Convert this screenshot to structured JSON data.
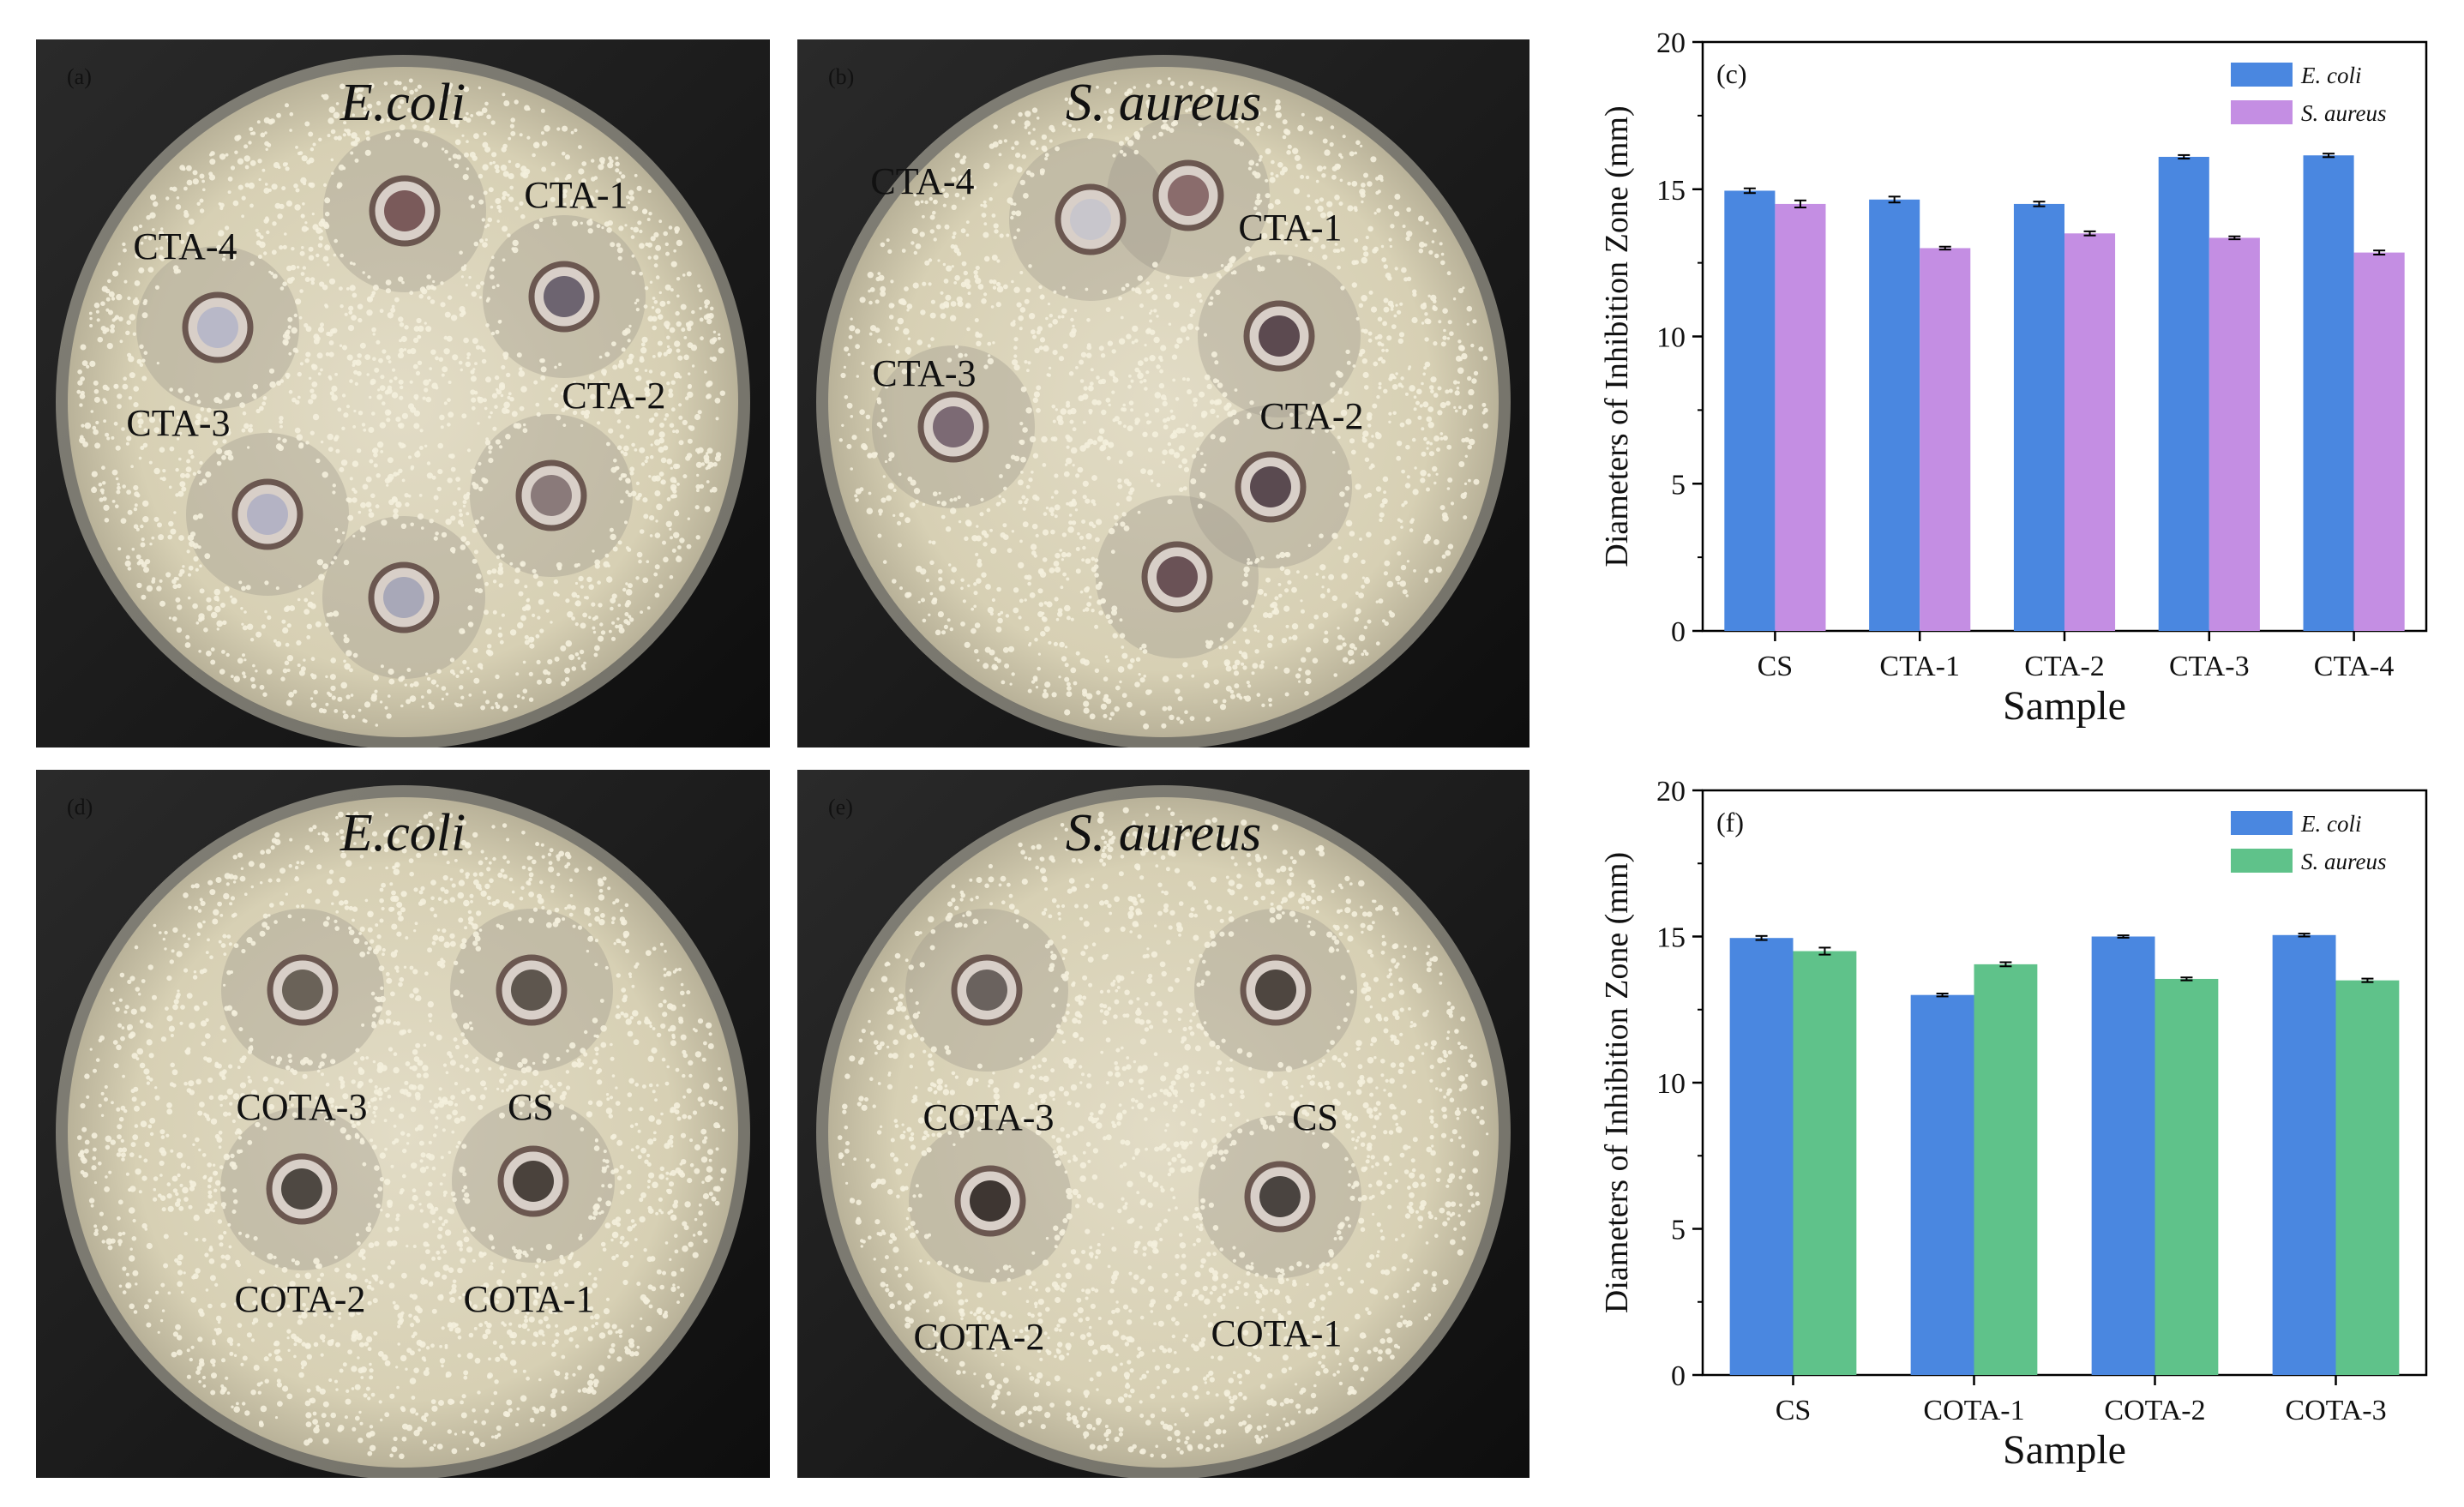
{
  "panels": {
    "a": {
      "label": "(a)",
      "organism": "E.coli",
      "wells": [
        "CTA-4",
        "CTA-1",
        "CTA-3",
        "CTA-2"
      ]
    },
    "b": {
      "label": "(b)",
      "organism": "S. aureus",
      "wells": [
        "CTA-4",
        "CTA-1",
        "CTA-3",
        "CTA-2"
      ]
    },
    "d": {
      "label": "(d)",
      "organism": "E.coli",
      "wells": [
        "COTA-3",
        "CS",
        "COTA-2",
        "COTA-1"
      ]
    },
    "e": {
      "label": "(e)",
      "organism": "S. aureus",
      "wells": [
        "COTA-3",
        "CS",
        "COTA-2",
        "COTA-1"
      ]
    }
  },
  "colors": {
    "ecoli": "#4a87e0",
    "saureus_c": "#c48ee3",
    "saureus_f": "#5fc28a"
  },
  "chart_data": [
    {
      "panel_label": "(c)",
      "type": "bar",
      "categories": [
        "CS",
        "CTA-1",
        "CTA-2",
        "CTA-3",
        "CTA-4"
      ],
      "series": [
        {
          "name": "E. coli",
          "values": [
            14.95,
            14.65,
            14.5,
            16.1,
            16.15
          ],
          "errors": [
            0.08,
            0.1,
            0.08,
            0.06,
            0.06
          ]
        },
        {
          "name": "S. aureus",
          "values": [
            14.5,
            13.0,
            13.5,
            13.35,
            12.85
          ],
          "errors": [
            0.12,
            0.05,
            0.07,
            0.05,
            0.07
          ]
        }
      ],
      "xlabel": "Sample",
      "ylabel": "Diameters of Inhibition Zone (mm)",
      "ylim": [
        0,
        20
      ],
      "yticks": [
        0,
        5,
        10,
        15,
        20
      ],
      "legend": "top-right",
      "grid": false
    },
    {
      "panel_label": "(f)",
      "type": "bar",
      "categories": [
        "CS",
        "COTA-1",
        "COTA-2",
        "COTA-3"
      ],
      "series": [
        {
          "name": "E. coli",
          "values": [
            14.95,
            13.0,
            15.0,
            15.05
          ],
          "errors": [
            0.07,
            0.05,
            0.04,
            0.05
          ]
        },
        {
          "name": "S. aureus",
          "values": [
            14.5,
            14.05,
            13.55,
            13.5
          ],
          "errors": [
            0.12,
            0.07,
            0.05,
            0.06
          ]
        }
      ],
      "xlabel": "Sample",
      "ylabel": "Diameters of Inhibition Zone (mm)",
      "ylim": [
        0,
        20
      ],
      "yticks": [
        0,
        5,
        10,
        15,
        20
      ],
      "legend": "top-right",
      "grid": false
    }
  ]
}
